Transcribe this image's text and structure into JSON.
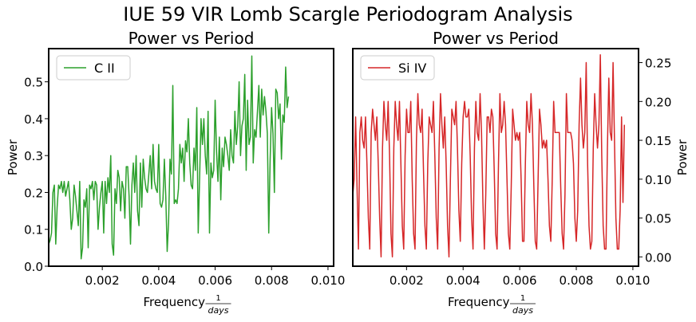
{
  "figure": {
    "suptitle": "IUE 59 VIR Lomb Scargle Periodogram Analysis"
  },
  "chart_data": [
    {
      "type": "line",
      "title": "Power vs Period",
      "xlabel": "Frequency",
      "xlabel_unit_numerator": "1",
      "xlabel_unit_denominator": "days",
      "ylabel": "Power",
      "xlim": [
        0.0001,
        0.0102
      ],
      "ylim": [
        0.0,
        0.59
      ],
      "xticks": [
        0.002,
        0.004,
        0.006,
        0.008,
        0.01
      ],
      "xtick_labels": [
        "0.002",
        "0.004",
        "0.006",
        "0.008",
        "0.010"
      ],
      "yticks": [
        0.0,
        0.1,
        0.2,
        0.3,
        0.4,
        0.5
      ],
      "ytick_labels": [
        "0.0",
        "0.1",
        "0.2",
        "0.3",
        "0.4",
        "0.5"
      ],
      "y_axis_side": "left",
      "legend": "top-left",
      "grid": false,
      "series": [
        {
          "name": "C II",
          "color": "#2ca02c",
          "x_start": 0.0001,
          "x_step": 5e-05,
          "values": [
            0.06,
            0.07,
            0.09,
            0.2,
            0.22,
            0.06,
            0.16,
            0.22,
            0.21,
            0.23,
            0.2,
            0.23,
            0.19,
            0.21,
            0.23,
            0.18,
            0.1,
            0.13,
            0.22,
            0.19,
            0.15,
            0.11,
            0.23,
            0.02,
            0.05,
            0.18,
            0.16,
            0.21,
            0.05,
            0.22,
            0.21,
            0.23,
            0.18,
            0.23,
            0.22,
            0.1,
            0.16,
            0.2,
            0.23,
            0.09,
            0.23,
            0.17,
            0.24,
            0.2,
            0.3,
            0.06,
            0.03,
            0.21,
            0.17,
            0.26,
            0.24,
            0.15,
            0.23,
            0.21,
            0.13,
            0.27,
            0.27,
            0.19,
            0.06,
            0.22,
            0.28,
            0.2,
            0.3,
            0.15,
            0.11,
            0.28,
            0.16,
            0.29,
            0.24,
            0.21,
            0.2,
            0.25,
            0.3,
            0.21,
            0.33,
            0.23,
            0.21,
            0.2,
            0.33,
            0.17,
            0.16,
            0.18,
            0.29,
            0.19,
            0.04,
            0.12,
            0.29,
            0.25,
            0.49,
            0.17,
            0.18,
            0.17,
            0.21,
            0.33,
            0.28,
            0.32,
            0.23,
            0.34,
            0.31,
            0.4,
            0.28,
            0.22,
            0.21,
            0.32,
            0.26,
            0.43,
            0.09,
            0.24,
            0.4,
            0.33,
            0.4,
            0.3,
            0.25,
            0.42,
            0.09,
            0.28,
            0.24,
            0.26,
            0.45,
            0.31,
            0.23,
            0.35,
            0.18,
            0.32,
            0.27,
            0.35,
            0.33,
            0.3,
            0.26,
            0.37,
            0.3,
            0.28,
            0.42,
            0.33,
            0.38,
            0.5,
            0.3,
            0.38,
            0.4,
            0.52,
            0.26,
            0.45,
            0.33,
            0.35,
            0.57,
            0.28,
            0.37,
            0.35,
            0.42,
            0.49,
            0.35,
            0.48,
            0.41,
            0.46,
            0.42,
            0.36,
            0.09,
            0.29,
            0.43,
            0.36,
            0.2,
            0.48,
            0.47,
            0.4,
            0.44,
            0.29,
            0.41,
            0.39,
            0.54,
            0.43,
            0.46
          ]
        }
      ]
    },
    {
      "type": "line",
      "title": "Power vs Period",
      "xlabel": "Frequency",
      "xlabel_unit_numerator": "1",
      "xlabel_unit_denominator": "days",
      "ylabel": "Power",
      "xlim": [
        0.0001,
        0.0102
      ],
      "ylim": [
        -0.012,
        0.268
      ],
      "xticks": [
        0.002,
        0.004,
        0.006,
        0.008,
        0.01
      ],
      "xtick_labels": [
        "0.002",
        "0.004",
        "0.006",
        "0.008",
        "0.010"
      ],
      "yticks": [
        0.0,
        0.05,
        0.1,
        0.15,
        0.2,
        0.25
      ],
      "ytick_labels": [
        "0.00",
        "0.05",
        "0.10",
        "0.15",
        "0.20",
        "0.25"
      ],
      "y_axis_side": "right",
      "legend": "top-left",
      "grid": false,
      "series": [
        {
          "name": "Si IV",
          "color": "#d62728",
          "x_start": 0.0001,
          "x_step": 5e-05,
          "values": [
            0.08,
            0.1,
            0.18,
            0.09,
            0.01,
            0.16,
            0.18,
            0.15,
            0.14,
            0.18,
            0.12,
            0.05,
            0.01,
            0.16,
            0.19,
            0.17,
            0.15,
            0.18,
            0.12,
            0.05,
            0.0,
            0.14,
            0.2,
            0.17,
            0.15,
            0.2,
            0.13,
            0.03,
            0.0,
            0.14,
            0.2,
            0.17,
            0.15,
            0.2,
            0.12,
            0.04,
            0.01,
            0.13,
            0.19,
            0.16,
            0.16,
            0.2,
            0.1,
            0.03,
            0.01,
            0.15,
            0.21,
            0.17,
            0.16,
            0.19,
            0.11,
            0.04,
            0.01,
            0.12,
            0.18,
            0.17,
            0.16,
            0.2,
            0.13,
            0.05,
            0.01,
            0.14,
            0.21,
            0.17,
            0.14,
            0.18,
            0.12,
            0.04,
            0.0,
            0.1,
            0.19,
            0.18,
            0.17,
            0.2,
            0.14,
            0.06,
            0.02,
            0.12,
            0.18,
            0.2,
            0.18,
            0.18,
            0.19,
            0.13,
            0.05,
            0.01,
            0.14,
            0.2,
            0.16,
            0.15,
            0.21,
            0.16,
            0.07,
            0.01,
            0.08,
            0.18,
            0.18,
            0.16,
            0.19,
            0.18,
            0.11,
            0.03,
            0.01,
            0.12,
            0.21,
            0.16,
            0.17,
            0.2,
            0.17,
            0.1,
            0.03,
            0.01,
            0.09,
            0.19,
            0.17,
            0.15,
            0.16,
            0.15,
            0.16,
            0.1,
            0.02,
            0.02,
            0.12,
            0.2,
            0.17,
            0.16,
            0.21,
            0.17,
            0.09,
            0.02,
            0.01,
            0.1,
            0.19,
            0.17,
            0.14,
            0.15,
            0.14,
            0.15,
            0.1,
            0.04,
            0.02,
            0.1,
            0.2,
            0.16,
            0.16,
            0.16,
            0.16,
            0.09,
            0.03,
            0.01,
            0.08,
            0.21,
            0.16,
            0.16,
            0.16,
            0.15,
            0.12,
            0.05,
            0.02,
            0.06,
            0.17,
            0.23,
            0.17,
            0.14,
            0.16,
            0.25,
            0.12,
            0.04,
            0.01,
            0.02,
            0.14,
            0.21,
            0.17,
            0.14,
            0.17,
            0.26,
            0.13,
            0.04,
            0.01,
            0.01,
            0.14,
            0.23,
            0.16,
            0.15,
            0.25,
            0.15,
            0.05,
            0.01,
            0.01,
            0.06,
            0.18,
            0.07,
            0.17
          ]
        }
      ]
    }
  ]
}
